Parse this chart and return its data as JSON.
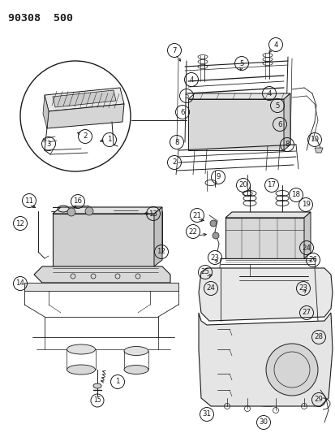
{
  "title": "90308  500",
  "bg": "#ffffff",
  "fg": "#1a1a1a",
  "fw": 4.14,
  "fh": 5.33,
  "dpi": 100,
  "circle_labels": [
    [
      1,
      148,
      472
    ],
    [
      2,
      88,
      490
    ],
    [
      3,
      58,
      478
    ],
    [
      4,
      340,
      55
    ],
    [
      4,
      236,
      98
    ],
    [
      4,
      332,
      115
    ],
    [
      5,
      298,
      78
    ],
    [
      5,
      230,
      118
    ],
    [
      5,
      342,
      130
    ],
    [
      6,
      225,
      138
    ],
    [
      6,
      345,
      153
    ],
    [
      7,
      213,
      62
    ],
    [
      8,
      218,
      175
    ],
    [
      8,
      354,
      178
    ],
    [
      9,
      269,
      218
    ],
    [
      10,
      388,
      172
    ],
    [
      11,
      36,
      247
    ],
    [
      12,
      25,
      275
    ],
    [
      12,
      199,
      310
    ],
    [
      13,
      189,
      263
    ],
    [
      14,
      25,
      349
    ],
    [
      15,
      120,
      495
    ],
    [
      16,
      96,
      248
    ],
    [
      17,
      335,
      228
    ],
    [
      18,
      365,
      240
    ],
    [
      19,
      377,
      252
    ],
    [
      20,
      300,
      228
    ],
    [
      21,
      243,
      265
    ],
    [
      22,
      238,
      285
    ],
    [
      23,
      265,
      317
    ],
    [
      23,
      374,
      355
    ],
    [
      24,
      378,
      305
    ],
    [
      24,
      260,
      355
    ],
    [
      25,
      253,
      335
    ],
    [
      26,
      386,
      320
    ],
    [
      27,
      378,
      385
    ],
    [
      28,
      393,
      415
    ],
    [
      29,
      393,
      492
    ],
    [
      30,
      325,
      520
    ],
    [
      31,
      255,
      510
    ]
  ]
}
